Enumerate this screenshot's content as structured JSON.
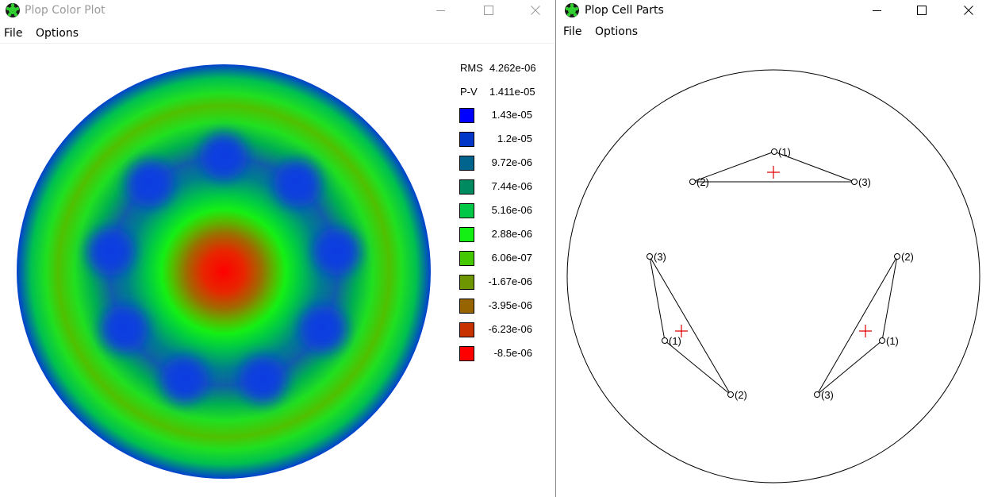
{
  "left_window": {
    "title": "Plop Color Plot",
    "menu": [
      "File",
      "Options"
    ],
    "stats": {
      "rms_label": "RMS",
      "rms_value": "4.262e-06",
      "pv_label": "P-V",
      "pv_value": "1.411e-05"
    },
    "legend": [
      {
        "value": "1.43e-05",
        "color": "#0000ff"
      },
      {
        "value": "1.2e-05",
        "color": "#0037c8"
      },
      {
        "value": "9.72e-06",
        "color": "#00648c"
      },
      {
        "value": "7.44e-06",
        "color": "#008a60"
      },
      {
        "value": "5.16e-06",
        "color": "#00c846"
      },
      {
        "value": "2.88e-06",
        "color": "#14f014"
      },
      {
        "value": "6.06e-07",
        "color": "#46c800"
      },
      {
        "value": "-1.67e-06",
        "color": "#6e9600"
      },
      {
        "value": "-3.95e-06",
        "color": "#966400"
      },
      {
        "value": "-6.23e-06",
        "color": "#c83200"
      },
      {
        "value": "-8.5e-06",
        "color": "#ff0000"
      }
    ]
  },
  "right_window": {
    "title": "Plop Cell Parts",
    "menu": [
      "File",
      "Options"
    ],
    "cells": [
      {
        "points": [
          {
            "label": "(1)",
            "x": 976,
            "y": 191
          },
          {
            "label": "(2)",
            "x": 873,
            "y": 229
          },
          {
            "label": "(3)",
            "x": 1077,
            "y": 229
          }
        ],
        "center": {
          "x": 975,
          "y": 217
        }
      },
      {
        "points": [
          {
            "label": "(3)",
            "x": 819,
            "y": 323
          },
          {
            "label": "(1)",
            "x": 838,
            "y": 429
          },
          {
            "label": "(2)",
            "x": 921,
            "y": 497
          }
        ],
        "center": {
          "x": 859,
          "y": 417
        }
      },
      {
        "points": [
          {
            "label": "(2)",
            "x": 1131,
            "y": 323
          },
          {
            "label": "(1)",
            "x": 1112,
            "y": 429
          },
          {
            "label": "(3)",
            "x": 1030,
            "y": 497
          }
        ],
        "center": {
          "x": 1091,
          "y": 417
        }
      }
    ]
  }
}
